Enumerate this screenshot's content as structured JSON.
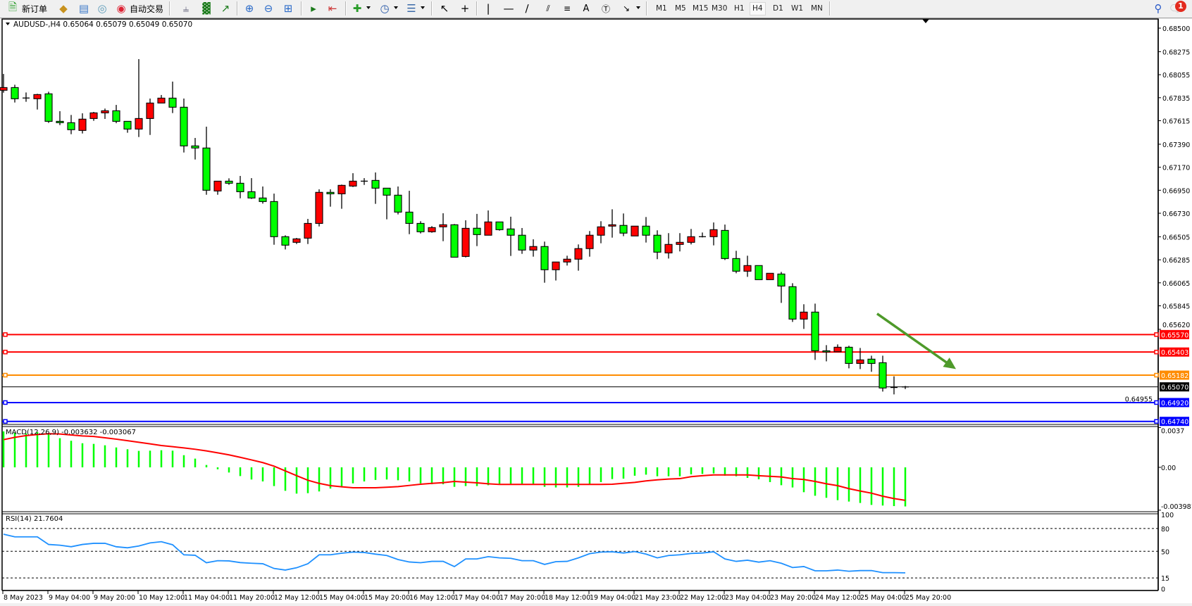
{
  "toolbar": {
    "new_order": "新订单",
    "auto_trading": "自动交易",
    "timeframes": [
      "M1",
      "M5",
      "M15",
      "M30",
      "H1",
      "H4",
      "D1",
      "W1",
      "MN"
    ],
    "active_timeframe": "H4",
    "notification_count": "1",
    "icons": [
      "new-order-icon",
      "market-watch-icon",
      "navigator-icon",
      "signals-icon",
      "auto-trading-icon",
      "bar-chart-icon",
      "candlestick-icon",
      "line-chart-icon",
      "zoom-in-icon",
      "zoom-out-icon",
      "tile-windows-icon",
      "chart-shift-icon",
      "autoscroll-icon",
      "indicators-icon",
      "periods-icon",
      "templates-icon",
      "cursor-icon",
      "crosshair-icon",
      "vertical-line-icon",
      "horizontal-line-icon",
      "trendline-icon",
      "equidistant-channel-icon",
      "fibonacci-icon",
      "text-icon",
      "text-label-icon",
      "arrows-icon",
      "search-icon",
      "chat-icon"
    ]
  },
  "chart_header": "AUDUSD-,H4  0.65064 0.65079 0.65049 0.65070",
  "price_axis_labels": [
    "0.68500",
    "0.68275",
    "0.68055",
    "0.67835",
    "0.67615",
    "0.67390",
    "0.67170",
    "0.66950",
    "0.66730",
    "0.66505",
    "0.66285",
    "0.66065",
    "0.65845",
    "0.65620",
    "0.64955"
  ],
  "time_axis_labels": [
    "8 May 2023",
    "9 May 04:00",
    "9 May 20:00",
    "10 May 12:00",
    "11 May 04:00",
    "11 May 20:00",
    "12 May 12:00",
    "15 May 04:00",
    "15 May 20:00",
    "16 May 12:00",
    "17 May 04:00",
    "17 May 20:00",
    "18 May 12:00",
    "19 May 04:00",
    "21 May 23:00",
    "22 May 12:00",
    "23 May 04:00",
    "23 May 20:00",
    "24 May 12:00",
    "25 May 04:00",
    "25 May 20:00"
  ],
  "horizontal_lines": [
    {
      "price": 0.6557,
      "label": "0.65570",
      "color": "#ff0000"
    },
    {
      "price": 0.65403,
      "label": "0.65403",
      "color": "#ff0000"
    },
    {
      "price": 0.65182,
      "label": "0.65182",
      "color": "#ff8c00"
    },
    {
      "price": 0.6492,
      "label": "0.64920",
      "color": "#0000ff"
    },
    {
      "price": 0.6474,
      "label": "0.64740",
      "color": "#0000ff"
    }
  ],
  "current_price": {
    "price": 0.6507,
    "label": "0.65070",
    "color": "#000000"
  },
  "arrow": {
    "color": "#4e9a2a",
    "from_price": 0.6577,
    "to_price": 0.6524,
    "from_bar": 77.5,
    "to_bar": 84.5
  },
  "colors": {
    "bull": "#ff0000",
    "bear": "#00ff00",
    "macd_hist": "#00ff00",
    "macd_signal": "#ff0000",
    "rsi": "#1e90ff"
  },
  "chart_data": [
    {
      "type": "candlestick",
      "symbol": "AUDUSD-",
      "timeframe": "H4",
      "ylim": [
        0.6471,
        0.6858
      ],
      "ohlc": [
        [
          0.67906,
          0.68062,
          0.67883,
          0.67932
        ],
        [
          0.67932,
          0.67959,
          0.67789,
          0.67825
        ],
        [
          0.67832,
          0.67885,
          0.67796,
          0.6783
        ],
        [
          0.67825,
          0.67872,
          0.67722,
          0.67865
        ],
        [
          0.67872,
          0.67892,
          0.67594,
          0.67609
        ],
        [
          0.67609,
          0.67706,
          0.67573,
          0.67596
        ],
        [
          0.67596,
          0.6767,
          0.67486,
          0.67529
        ],
        [
          0.67522,
          0.67686,
          0.67493,
          0.6763
        ],
        [
          0.67636,
          0.67699,
          0.67614,
          0.6769
        ],
        [
          0.6769,
          0.67731,
          0.67632,
          0.6771
        ],
        [
          0.6771,
          0.67766,
          0.67591,
          0.67609
        ],
        [
          0.67609,
          0.67609,
          0.675,
          0.67535
        ],
        [
          0.67535,
          0.68204,
          0.67459,
          0.67636
        ],
        [
          0.67636,
          0.67827,
          0.67479,
          0.67784
        ],
        [
          0.67784,
          0.67861,
          0.67784,
          0.67831
        ],
        [
          0.67831,
          0.67989,
          0.67688,
          0.67744
        ],
        [
          0.67744,
          0.67827,
          0.67311,
          0.67374
        ],
        [
          0.67374,
          0.6745,
          0.67244,
          0.67354
        ],
        [
          0.67354,
          0.67558,
          0.66907,
          0.6695
        ],
        [
          0.66943,
          0.67037,
          0.66907,
          0.67037
        ],
        [
          0.67037,
          0.67064,
          0.67002,
          0.67017
        ],
        [
          0.67017,
          0.67087,
          0.66873,
          0.66936
        ],
        [
          0.66936,
          0.67066,
          0.66867,
          0.66876
        ],
        [
          0.66876,
          0.66986,
          0.66822,
          0.66842
        ],
        [
          0.66842,
          0.66918,
          0.66429,
          0.66506
        ],
        [
          0.66506,
          0.66519,
          0.66384,
          0.66425
        ],
        [
          0.66452,
          0.66494,
          0.66436,
          0.66485
        ],
        [
          0.66492,
          0.66676,
          0.66436,
          0.66633
        ],
        [
          0.66633,
          0.66959,
          0.66604,
          0.6693
        ],
        [
          0.6693,
          0.66959,
          0.66793,
          0.66916
        ],
        [
          0.66916,
          0.67004,
          0.66773,
          0.66997
        ],
        [
          0.6699,
          0.67113,
          0.66981,
          0.67037
        ],
        [
          0.67037,
          0.67066,
          0.67001,
          0.67036
        ],
        [
          0.67044,
          0.6712,
          0.6682,
          0.6697
        ],
        [
          0.6697,
          0.6697,
          0.66672,
          0.66903
        ],
        [
          0.66903,
          0.66986,
          0.66719,
          0.66741
        ],
        [
          0.66741,
          0.66945,
          0.6653,
          0.66633
        ],
        [
          0.66633,
          0.66654,
          0.66537,
          0.66553
        ],
        [
          0.66553,
          0.66607,
          0.66544,
          0.66593
        ],
        [
          0.666,
          0.6673,
          0.66463,
          0.6662
        ],
        [
          0.6662,
          0.66627,
          0.6631,
          0.6631
        ],
        [
          0.66317,
          0.66663,
          0.66308,
          0.66586
        ],
        [
          0.66587,
          0.66724,
          0.66416,
          0.66526
        ],
        [
          0.6652,
          0.66757,
          0.6652,
          0.66647
        ],
        [
          0.66647,
          0.66647,
          0.66564,
          0.66573
        ],
        [
          0.6658,
          0.66697,
          0.66322,
          0.6652
        ],
        [
          0.6652,
          0.66589,
          0.66342,
          0.66378
        ],
        [
          0.66378,
          0.66481,
          0.66315,
          0.66412
        ],
        [
          0.66412,
          0.66459,
          0.66066,
          0.6619
        ],
        [
          0.6619,
          0.66264,
          0.66087,
          0.66264
        ],
        [
          0.66264,
          0.66324,
          0.6623,
          0.66291
        ],
        [
          0.66291,
          0.66432,
          0.66181,
          0.66392
        ],
        [
          0.66392,
          0.6656,
          0.66315,
          0.6652
        ],
        [
          0.6652,
          0.66654,
          0.66443,
          0.666
        ],
        [
          0.66607,
          0.66768,
          0.66497,
          0.6662
        ],
        [
          0.66614,
          0.66728,
          0.66511,
          0.6654
        ],
        [
          0.66513,
          0.66607,
          0.66513,
          0.66607
        ],
        [
          0.66607,
          0.66694,
          0.6645,
          0.6652
        ],
        [
          0.6652,
          0.66567,
          0.66291,
          0.66358
        ],
        [
          0.66351,
          0.6654,
          0.66297,
          0.66432
        ],
        [
          0.66432,
          0.6654,
          0.66365,
          0.66452
        ],
        [
          0.66452,
          0.6658,
          0.66432,
          0.66506
        ],
        [
          0.66506,
          0.66546,
          0.66499,
          0.66505
        ],
        [
          0.66506,
          0.66642,
          0.66423,
          0.66573
        ],
        [
          0.66566,
          0.66622,
          0.66283,
          0.66297
        ],
        [
          0.66297,
          0.66371,
          0.66156,
          0.66176
        ],
        [
          0.66176,
          0.66324,
          0.66122,
          0.6623
        ],
        [
          0.6623,
          0.6623,
          0.66095,
          0.66095
        ],
        [
          0.66095,
          0.66156,
          0.66095,
          0.66156
        ],
        [
          0.66149,
          0.66169,
          0.65873,
          0.66034
        ],
        [
          0.66028,
          0.66061,
          0.65691,
          0.65718
        ],
        [
          0.65718,
          0.6586,
          0.65624,
          0.65785
        ],
        [
          0.65785,
          0.65866,
          0.65328,
          0.65415
        ],
        [
          0.65415,
          0.65469,
          0.65314,
          0.65404
        ],
        [
          0.65406,
          0.65476,
          0.65406,
          0.65449
        ],
        [
          0.65449,
          0.65463,
          0.65247,
          0.65294
        ],
        [
          0.65294,
          0.65442,
          0.6524,
          0.65328
        ],
        [
          0.65335,
          0.65368,
          0.65214,
          0.65294
        ],
        [
          0.65301,
          0.65368,
          0.65025,
          0.65059
        ],
        [
          0.65059,
          0.65171,
          0.64998,
          0.65064
        ],
        [
          0.65064,
          0.65079,
          0.65049,
          0.6507
        ]
      ]
    },
    {
      "type": "bar",
      "title": "MACD(12,26,9) -0.003632 -0.003067",
      "axis_labels": [
        "0.0037",
        "0.00",
        "-0.003981"
      ],
      "histogram": [
        0.00334,
        0.00323,
        0.00316,
        0.00328,
        0.0031,
        0.00271,
        0.00247,
        0.00224,
        0.00218,
        0.00205,
        0.00185,
        0.00168,
        0.00153,
        0.00155,
        0.00159,
        0.00155,
        0.00113,
        0.00081,
        0.00022,
        -0.00018,
        -0.00048,
        -0.00081,
        -0.00113,
        -0.00131,
        -0.00174,
        -0.00218,
        -0.00244,
        -0.0024,
        -0.00224,
        -0.00197,
        -0.00179,
        -0.00149,
        -0.00131,
        -0.00117,
        -0.00113,
        -0.0012,
        -0.00131,
        -0.00149,
        -0.00157,
        -0.00157,
        -0.00181,
        -0.00174,
        -0.00174,
        -0.00166,
        -0.00153,
        -0.00153,
        -0.00153,
        -0.00153,
        -0.00181,
        -0.00187,
        -0.00187,
        -0.00181,
        -0.00159,
        -0.00137,
        -0.00109,
        -0.00105,
        -0.00078,
        -0.00068,
        -0.00083,
        -0.00083,
        -0.00083,
        -0.00065,
        -0.00061,
        -0.00057,
        -0.00078,
        -0.00083,
        -0.00098,
        -0.00111,
        -0.00137,
        -0.00166,
        -0.00187,
        -0.00231,
        -0.00264,
        -0.00283,
        -0.00305,
        -0.00318,
        -0.00331,
        -0.00349,
        -0.00355,
        -0.0036,
        -0.003632
      ],
      "signal": [
        0.00257,
        0.00279,
        0.00295,
        0.00305,
        0.00312,
        0.0031,
        0.00301,
        0.00292,
        0.00287,
        0.00275,
        0.00262,
        0.00248,
        0.00233,
        0.00218,
        0.00203,
        0.00192,
        0.00181,
        0.00168,
        0.00153,
        0.00135,
        0.00116,
        0.00093,
        0.00069,
        0.00044,
        0.00011,
        -0.00033,
        -0.00077,
        -0.0012,
        -0.00149,
        -0.0017,
        -0.00181,
        -0.0019,
        -0.0019,
        -0.0019,
        -0.00185,
        -0.00179,
        -0.00168,
        -0.00157,
        -0.00149,
        -0.00142,
        -0.00131,
        -0.00137,
        -0.00144,
        -0.00153,
        -0.00159,
        -0.00159,
        -0.00159,
        -0.00159,
        -0.00159,
        -0.00159,
        -0.00159,
        -0.00159,
        -0.00159,
        -0.00159,
        -0.00157,
        -0.00148,
        -0.0014,
        -0.00126,
        -0.00116,
        -0.00109,
        -0.00105,
        -0.00087,
        -0.00078,
        -0.0007,
        -0.0007,
        -0.0007,
        -0.0007,
        -0.00078,
        -0.00083,
        -0.00089,
        -0.00105,
        -0.00113,
        -0.00131,
        -0.00153,
        -0.0017,
        -0.00198,
        -0.0022,
        -0.0024,
        -0.00268,
        -0.0029,
        -0.003067
      ]
    },
    {
      "type": "line",
      "title": "RSI(14) 21.7604",
      "axis_labels": [
        "100",
        "80",
        "50",
        "15",
        "0"
      ],
      "levels": [
        80,
        50,
        15
      ],
      "ylim": [
        0,
        100
      ],
      "values": [
        72.5,
        69,
        69,
        69,
        59,
        58,
        56,
        59,
        60.5,
        60.5,
        56,
        54.6,
        57,
        61,
        62.6,
        58.6,
        45.4,
        44.8,
        35,
        37.7,
        37.4,
        35.2,
        34.3,
        33.7,
        27.5,
        25.4,
        28.4,
        33.7,
        45.4,
        45.4,
        47.5,
        49,
        48.5,
        46.3,
        44.5,
        39.2,
        36,
        35,
        36.8,
        36.8,
        30,
        40,
        40,
        43,
        41.4,
        40.8,
        37.7,
        37.7,
        32.8,
        36.4,
        36.8,
        41.4,
        46.9,
        49,
        49.4,
        47.8,
        49.7,
        46.3,
        41.4,
        44.5,
        45.4,
        47.2,
        47.8,
        49.4,
        40,
        36.8,
        38.3,
        35.8,
        37.7,
        34.3,
        28.7,
        30,
        24.4,
        24.4,
        25.4,
        23.8,
        24.7,
        24.7,
        22,
        22,
        21.7604
      ]
    }
  ]
}
